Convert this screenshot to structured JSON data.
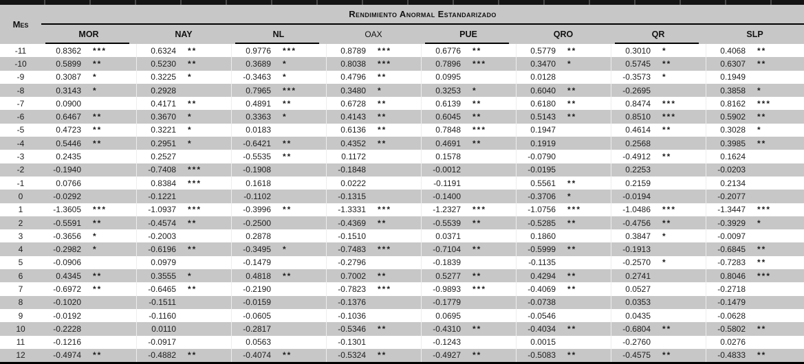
{
  "chart_data": {
    "type": "table",
    "title": "Rendimiento Anormal Estandarizado",
    "row_header": "Mes",
    "columns": [
      "MOR",
      "NAY",
      "NL",
      "OAX",
      "PUE",
      "QRO",
      "QR",
      "SLP"
    ],
    "rows": [
      {
        "mes": "-11",
        "cells": [
          [
            "0.8362",
            "***"
          ],
          [
            "0.6324",
            "**"
          ],
          [
            "0.9776",
            "***"
          ],
          [
            "0.8789",
            "***"
          ],
          [
            "0.6776",
            "**"
          ],
          [
            "0.5779",
            "**"
          ],
          [
            "0.3010",
            "*"
          ],
          [
            "0.4068",
            "**"
          ]
        ]
      },
      {
        "mes": "-10",
        "cells": [
          [
            "0.5899",
            "**"
          ],
          [
            "0.5230",
            "**"
          ],
          [
            "0.3689",
            "*"
          ],
          [
            "0.8038",
            "***"
          ],
          [
            "0.7896",
            "***"
          ],
          [
            "0.3470",
            "*"
          ],
          [
            "0.5745",
            "**"
          ],
          [
            "0.6307",
            "**"
          ]
        ]
      },
      {
        "mes": "-9",
        "cells": [
          [
            "0.3087",
            "*"
          ],
          [
            "0.3225",
            "*"
          ],
          [
            "-0.3463",
            "*"
          ],
          [
            "0.4796",
            "**"
          ],
          [
            "0.0995",
            ""
          ],
          [
            "0.0128",
            ""
          ],
          [
            "-0.3573",
            "*"
          ],
          [
            "0.1949",
            ""
          ]
        ]
      },
      {
        "mes": "-8",
        "cells": [
          [
            "0.3143",
            "*"
          ],
          [
            "0.2928",
            ""
          ],
          [
            "0.7965",
            "***"
          ],
          [
            "0.3480",
            "*"
          ],
          [
            "0.3253",
            "*"
          ],
          [
            "0.6040",
            "**"
          ],
          [
            "-0.2695",
            ""
          ],
          [
            "0.3858",
            "*"
          ]
        ]
      },
      {
        "mes": "-7",
        "cells": [
          [
            "0.0900",
            ""
          ],
          [
            "0.4171",
            "**"
          ],
          [
            "0.4891",
            "**"
          ],
          [
            "0.6728",
            "**"
          ],
          [
            "0.6139",
            "**"
          ],
          [
            "0.6180",
            "**"
          ],
          [
            "0.8474",
            "***"
          ],
          [
            "0.8162",
            "***"
          ]
        ]
      },
      {
        "mes": "-6",
        "cells": [
          [
            "0.6467",
            "**"
          ],
          [
            "0.3670",
            "*"
          ],
          [
            "0.3363",
            "*"
          ],
          [
            "0.4143",
            "**"
          ],
          [
            "0.6045",
            "**"
          ],
          [
            "0.5143",
            "**"
          ],
          [
            "0.8510",
            "***"
          ],
          [
            "0.5902",
            "**"
          ]
        ]
      },
      {
        "mes": "-5",
        "cells": [
          [
            "0.4723",
            "**"
          ],
          [
            "0.3221",
            "*"
          ],
          [
            "0.0183",
            ""
          ],
          [
            "0.6136",
            "**"
          ],
          [
            "0.7848",
            "***"
          ],
          [
            "0.1947",
            ""
          ],
          [
            "0.4614",
            "**"
          ],
          [
            "0.3028",
            "*"
          ]
        ]
      },
      {
        "mes": "-4",
        "cells": [
          [
            "0.5446",
            "**"
          ],
          [
            "0.2951",
            "*"
          ],
          [
            "-0.6421",
            "**"
          ],
          [
            "0.4352",
            "**"
          ],
          [
            "0.4691",
            "**"
          ],
          [
            "0.1919",
            ""
          ],
          [
            "0.2568",
            ""
          ],
          [
            "0.3985",
            "**"
          ]
        ]
      },
      {
        "mes": "-3",
        "cells": [
          [
            "0.2435",
            ""
          ],
          [
            "0.2527",
            ""
          ],
          [
            "-0.5535",
            "**"
          ],
          [
            "0.1172",
            ""
          ],
          [
            "0.1578",
            ""
          ],
          [
            "-0.0790",
            ""
          ],
          [
            "-0.4912",
            "**"
          ],
          [
            "0.1624",
            ""
          ]
        ]
      },
      {
        "mes": "-2",
        "cells": [
          [
            "-0.1940",
            ""
          ],
          [
            "-0.7408",
            "***"
          ],
          [
            "-0.1908",
            ""
          ],
          [
            "-0.1848",
            ""
          ],
          [
            "-0.0012",
            ""
          ],
          [
            "-0.0195",
            ""
          ],
          [
            "0.2253",
            ""
          ],
          [
            "-0.0203",
            ""
          ]
        ]
      },
      {
        "mes": "-1",
        "cells": [
          [
            "0.0766",
            ""
          ],
          [
            "0.8384",
            "***"
          ],
          [
            "0.1618",
            ""
          ],
          [
            "0.0222",
            ""
          ],
          [
            "-0.1191",
            ""
          ],
          [
            "0.5561",
            "**"
          ],
          [
            "0.2159",
            ""
          ],
          [
            "0.2134",
            ""
          ]
        ]
      },
      {
        "mes": "0",
        "cells": [
          [
            "-0.0292",
            ""
          ],
          [
            "-0.1221",
            ""
          ],
          [
            "-0.1102",
            ""
          ],
          [
            "-0.1315",
            ""
          ],
          [
            "-0.1400",
            ""
          ],
          [
            "-0.3706",
            "*"
          ],
          [
            "-0.0194",
            ""
          ],
          [
            "-0.2077",
            ""
          ]
        ]
      },
      {
        "mes": "1",
        "cells": [
          [
            "-1.3605",
            "***"
          ],
          [
            "-1.0937",
            "***"
          ],
          [
            "-0.3996",
            "**"
          ],
          [
            "-1.3331",
            "***"
          ],
          [
            "-1.2327",
            "***"
          ],
          [
            "-1.0756",
            "***"
          ],
          [
            "-1.0486",
            "***"
          ],
          [
            "-1.3447",
            "***"
          ]
        ]
      },
      {
        "mes": "2",
        "cells": [
          [
            "-0.5591",
            "**"
          ],
          [
            "-0.4574",
            "**"
          ],
          [
            "-0.2500",
            ""
          ],
          [
            "-0.4369",
            "**"
          ],
          [
            "-0.5539",
            "**"
          ],
          [
            "-0.5285",
            "**"
          ],
          [
            "-0.4756",
            "**"
          ],
          [
            "-0.3929",
            "*"
          ]
        ]
      },
      {
        "mes": "3",
        "cells": [
          [
            "-0.3656",
            "*"
          ],
          [
            "-0.2003",
            ""
          ],
          [
            "0.2878",
            ""
          ],
          [
            "-0.1510",
            ""
          ],
          [
            "0.0371",
            ""
          ],
          [
            "0.1860",
            ""
          ],
          [
            "0.3847",
            "*"
          ],
          [
            "-0.0097",
            ""
          ]
        ]
      },
      {
        "mes": "4",
        "cells": [
          [
            "-0.2982",
            "*"
          ],
          [
            "-0.6196",
            "**"
          ],
          [
            "-0.3495",
            "*"
          ],
          [
            "-0.7483",
            "***"
          ],
          [
            "-0.7104",
            "**"
          ],
          [
            "-0.5999",
            "**"
          ],
          [
            "-0.1913",
            ""
          ],
          [
            "-0.6845",
            "**"
          ]
        ]
      },
      {
        "mes": "5",
        "cells": [
          [
            "-0.0906",
            ""
          ],
          [
            "0.0979",
            ""
          ],
          [
            "-0.1479",
            ""
          ],
          [
            "-0.2796",
            ""
          ],
          [
            "-0.1839",
            ""
          ],
          [
            "-0.1135",
            ""
          ],
          [
            "-0.2570",
            "*"
          ],
          [
            "-0.7283",
            "**"
          ]
        ]
      },
      {
        "mes": "6",
        "cells": [
          [
            "0.4345",
            "**"
          ],
          [
            "0.3555",
            "*"
          ],
          [
            "0.4818",
            "**"
          ],
          [
            "0.7002",
            "**"
          ],
          [
            "0.5277",
            "**"
          ],
          [
            "0.4294",
            "**"
          ],
          [
            "0.2741",
            ""
          ],
          [
            "0.8046",
            "***"
          ]
        ]
      },
      {
        "mes": "7",
        "cells": [
          [
            "-0.6972",
            "**"
          ],
          [
            "-0.6465",
            "**"
          ],
          [
            "-0.2190",
            ""
          ],
          [
            "-0.7823",
            "***"
          ],
          [
            "-0.9893",
            "***"
          ],
          [
            "-0.4069",
            "**"
          ],
          [
            "0.0527",
            ""
          ],
          [
            "-0.2718",
            ""
          ]
        ]
      },
      {
        "mes": "8",
        "cells": [
          [
            "-0.1020",
            ""
          ],
          [
            "-0.1511",
            ""
          ],
          [
            "-0.0159",
            ""
          ],
          [
            "-0.1376",
            ""
          ],
          [
            "-0.1779",
            ""
          ],
          [
            "-0.0738",
            ""
          ],
          [
            "0.0353",
            ""
          ],
          [
            "-0.1479",
            ""
          ]
        ]
      },
      {
        "mes": "9",
        "cells": [
          [
            "-0.0192",
            ""
          ],
          [
            "-0.1160",
            ""
          ],
          [
            "-0.0605",
            ""
          ],
          [
            "-0.1036",
            ""
          ],
          [
            "0.0695",
            ""
          ],
          [
            "-0.0546",
            ""
          ],
          [
            "0.0435",
            ""
          ],
          [
            "-0.0628",
            ""
          ]
        ]
      },
      {
        "mes": "10",
        "cells": [
          [
            "-0.2228",
            ""
          ],
          [
            "0.0110",
            ""
          ],
          [
            "-0.2817",
            ""
          ],
          [
            "-0.5346",
            "**"
          ],
          [
            "-0.4310",
            "**"
          ],
          [
            "-0.4034",
            "**"
          ],
          [
            "-0.6804",
            "**"
          ],
          [
            "-0.5802",
            "**"
          ]
        ]
      },
      {
        "mes": "11",
        "cells": [
          [
            "-0.1216",
            ""
          ],
          [
            "-0.0917",
            ""
          ],
          [
            "0.0563",
            ""
          ],
          [
            "-0.1301",
            ""
          ],
          [
            "-0.1243",
            ""
          ],
          [
            "0.0015",
            ""
          ],
          [
            "-0.2760",
            ""
          ],
          [
            "0.0276",
            ""
          ]
        ]
      },
      {
        "mes": "12",
        "cells": [
          [
            "-0.4974",
            "**"
          ],
          [
            "-0.4882",
            "**"
          ],
          [
            "-0.4074",
            "**"
          ],
          [
            "-0.5324",
            "**"
          ],
          [
            "-0.4927",
            "**"
          ],
          [
            "-0.5083",
            "**"
          ],
          [
            "-0.4575",
            "**"
          ],
          [
            "-0.4833",
            "**"
          ]
        ]
      }
    ]
  },
  "colors": {
    "stripe": "#c7c7c7",
    "header_bg": "#c7c7c7",
    "rule": "#000000",
    "text": "#1c1c1c"
  }
}
